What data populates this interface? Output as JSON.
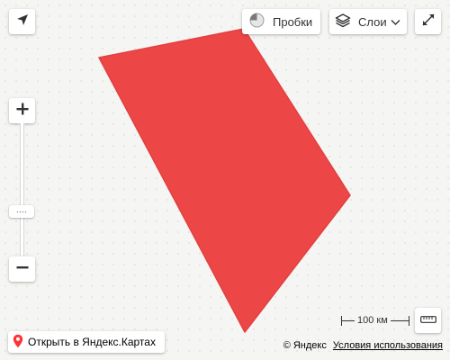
{
  "map": {
    "region_fill": "#ec4646",
    "background": "#f5f5f3"
  },
  "controls": {
    "locate_icon": "geolocation-arrow-icon",
    "traffic": {
      "label": "Пробки",
      "icon": "traffic-light-icon"
    },
    "layers": {
      "label": "Слои",
      "icon": "layers-icon",
      "dropdown_icon": "chevron-down-icon"
    },
    "fullscreen_icon": "expand-arrows-icon",
    "zoom_in_icon": "plus-icon",
    "zoom_out_icon": "minus-icon",
    "ruler_icon": "ruler-icon"
  },
  "scale": {
    "label": "100 км"
  },
  "footer": {
    "open_in_maps": "Открыть в Яндекс.Картах",
    "copyright": "© Яндекс",
    "terms": "Условия использования"
  }
}
